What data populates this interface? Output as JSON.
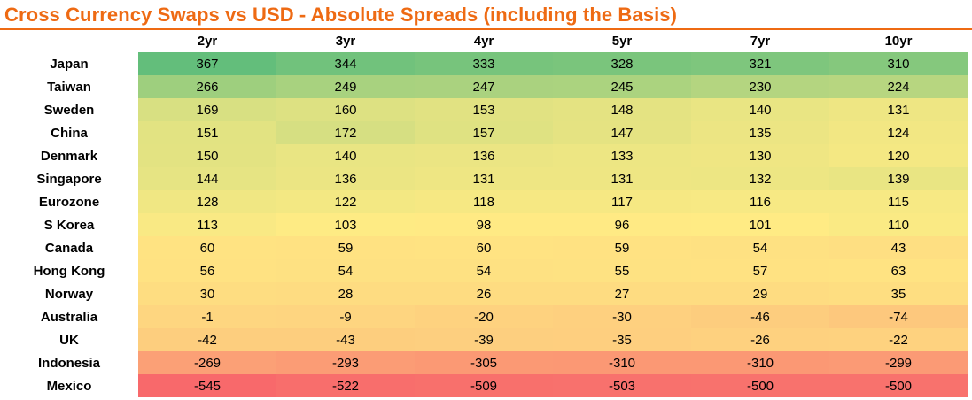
{
  "title": "Cross Currency Swaps vs USD - Absolute Spreads (including the Basis)",
  "colors": {
    "accent": "#ee6a13",
    "heat_low": "#f8696b",
    "heat_mid": "#ffeb84",
    "heat_high": "#63be7b"
  },
  "chart_data": {
    "type": "heatmap",
    "title": "Cross Currency Swaps vs USD - Absolute Spreads (including the Basis)",
    "columns": [
      "2yr",
      "3yr",
      "4yr",
      "5yr",
      "7yr",
      "10yr"
    ],
    "rows": [
      {
        "label": "Japan",
        "values": [
          367,
          344,
          333,
          328,
          321,
          310
        ]
      },
      {
        "label": "Taiwan",
        "values": [
          266,
          249,
          247,
          245,
          230,
          224
        ]
      },
      {
        "label": "Sweden",
        "values": [
          169,
          160,
          153,
          148,
          140,
          131
        ]
      },
      {
        "label": "China",
        "values": [
          151,
          172,
          157,
          147,
          135,
          124
        ]
      },
      {
        "label": "Denmark",
        "values": [
          150,
          140,
          136,
          133,
          130,
          120
        ]
      },
      {
        "label": "Singapore",
        "values": [
          144,
          136,
          131,
          131,
          132,
          139
        ]
      },
      {
        "label": "Eurozone",
        "values": [
          128,
          122,
          118,
          117,
          116,
          115
        ]
      },
      {
        "label": "S Korea",
        "values": [
          113,
          103,
          98,
          96,
          101,
          110
        ]
      },
      {
        "label": "Canada",
        "values": [
          60,
          59,
          60,
          59,
          54,
          43
        ]
      },
      {
        "label": "Hong Kong",
        "values": [
          56,
          54,
          54,
          55,
          57,
          63
        ]
      },
      {
        "label": "Norway",
        "values": [
          30,
          28,
          26,
          27,
          29,
          35
        ]
      },
      {
        "label": "Australia",
        "values": [
          -1,
          -9,
          -20,
          -30,
          -46,
          -74
        ]
      },
      {
        "label": "UK",
        "values": [
          -42,
          -43,
          -39,
          -35,
          -26,
          -22
        ]
      },
      {
        "label": "Indonesia",
        "values": [
          -269,
          -293,
          -305,
          -310,
          -310,
          -299
        ]
      },
      {
        "label": "Mexico",
        "values": [
          -545,
          -522,
          -509,
          -503,
          -500,
          -500
        ]
      }
    ]
  }
}
